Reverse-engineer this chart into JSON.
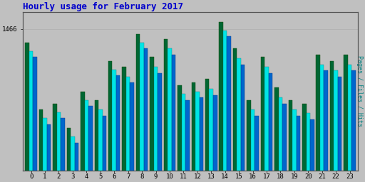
{
  "title": "Hourly usage for February 2017",
  "title_color": "#0000cc",
  "background_color": "#c0c0c0",
  "plot_bg_color": "#c0c0c0",
  "ylabel_right": "Pages / Files / Hits",
  "ylabel_right_color": "#008080",
  "hours": [
    0,
    1,
    2,
    3,
    4,
    5,
    6,
    7,
    8,
    9,
    10,
    11,
    12,
    13,
    14,
    15,
    16,
    17,
    18,
    19,
    20,
    21,
    22,
    23
  ],
  "pages": [
    1455,
    1400,
    1405,
    1385,
    1415,
    1408,
    1440,
    1435,
    1462,
    1443,
    1458,
    1420,
    1422,
    1425,
    1472,
    1450,
    1408,
    1443,
    1418,
    1408,
    1405,
    1445,
    1440,
    1445
  ],
  "files": [
    1448,
    1393,
    1398,
    1378,
    1408,
    1400,
    1433,
    1427,
    1455,
    1435,
    1450,
    1413,
    1415,
    1417,
    1465,
    1442,
    1400,
    1435,
    1410,
    1400,
    1397,
    1437,
    1432,
    1437
  ],
  "hits": [
    1443,
    1388,
    1393,
    1373,
    1403,
    1395,
    1428,
    1422,
    1450,
    1430,
    1445,
    1408,
    1410,
    1412,
    1460,
    1437,
    1395,
    1430,
    1405,
    1395,
    1392,
    1432,
    1427,
    1432
  ],
  "pages_color": "#006633",
  "files_color": "#00e5e5",
  "hits_color": "#0066cc",
  "pages_edge": "#004400",
  "files_edge": "#008888",
  "hits_edge": "#003388",
  "ymin": 1350,
  "ymax": 1480,
  "ytick_val": 1466,
  "ytick_label": "1466"
}
